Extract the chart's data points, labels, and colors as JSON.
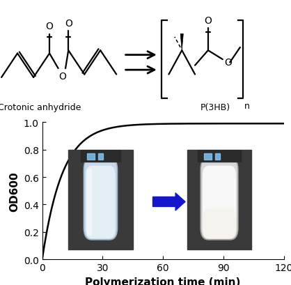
{
  "label_crotonic": "Crotonic anhydride",
  "label_p3hb": "P(3HB)",
  "xlabel": "Polymerization time (min)",
  "ylabel": "OD600",
  "xlim": [
    0,
    120
  ],
  "ylim": [
    0,
    1
  ],
  "xticks": [
    0,
    30,
    60,
    90,
    120
  ],
  "yticks": [
    0,
    0.2,
    0.4,
    0.6,
    0.8,
    1
  ],
  "curve_color": "#000000",
  "curve_k": 0.1,
  "curve_max": 0.99,
  "arrow_color": "#1515CC",
  "tube_bg_color": "#484848",
  "tube_left_liquid": "#D0DDE8",
  "tube_right_liquid": "#F0F0F0",
  "xlabel_fontsize": 11,
  "ylabel_fontsize": 11,
  "tick_fontsize": 10,
  "struct_lw": 1.6,
  "fig_width": 4.18,
  "fig_height": 4.1,
  "dpi": 100
}
